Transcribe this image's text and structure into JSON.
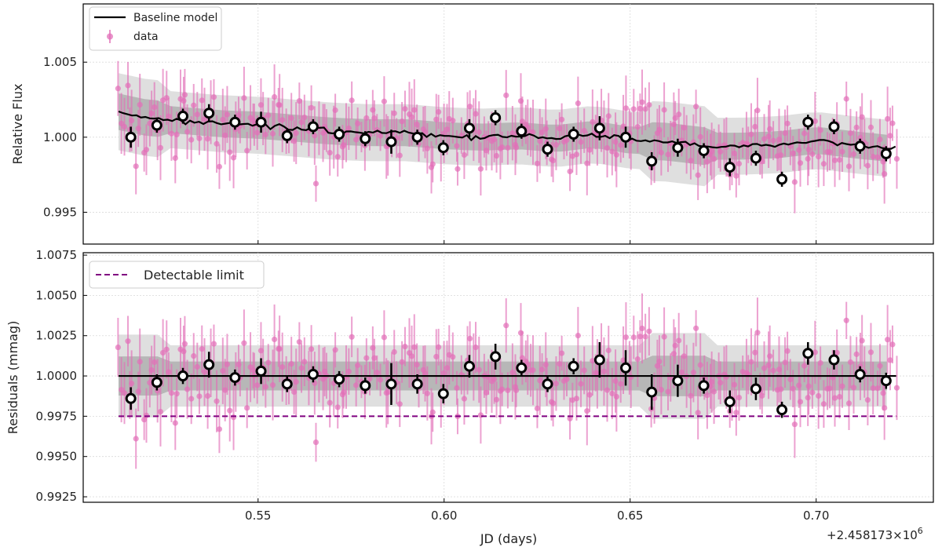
{
  "chart_data": [
    {
      "type": "scatter",
      "panel": "top",
      "ylabel": "Relative Flux",
      "xlabel": "",
      "xlim": [
        0.503,
        0.7315
      ],
      "ylim": [
        0.99288,
        1.00888
      ],
      "yticks": [
        0.995,
        1.0,
        1.005
      ],
      "ytick_labels": [
        "0.995",
        "1.000",
        "1.005"
      ],
      "xticks": [
        0.55,
        0.6,
        0.65,
        0.7
      ],
      "grid": true,
      "legend_position": "top-left",
      "legend": [
        "Baseline model",
        "data"
      ],
      "colors": {
        "data": "#e26fb8",
        "model": "#000000",
        "band_inner": "#b3b3b3",
        "band_outer": "#dcdcdc",
        "binned": "#000000"
      },
      "model_curve": {
        "name": "Baseline model",
        "x": [
          0.5125,
          0.52,
          0.53,
          0.54,
          0.55,
          0.56,
          0.57,
          0.58,
          0.59,
          0.6,
          0.61,
          0.62,
          0.63,
          0.64,
          0.65,
          0.66,
          0.67,
          0.68,
          0.69,
          0.7,
          0.71,
          0.7215
        ],
        "y": [
          1.0017,
          1.0013,
          1.0011,
          1.0009,
          1.0008,
          1.0006,
          1.0004,
          1.0003,
          1.0003,
          1.0001,
          1.0,
          1.0001,
          0.9999,
          1.0002,
          0.9998,
          0.9997,
          0.9994,
          0.9994,
          0.9995,
          0.9998,
          0.9995,
          0.9992
        ]
      },
      "binned": {
        "x": [
          0.5158,
          0.5228,
          0.5298,
          0.5368,
          0.5438,
          0.5508,
          0.5578,
          0.5648,
          0.5718,
          0.5788,
          0.5858,
          0.5928,
          0.5998,
          0.6068,
          0.6138,
          0.6208,
          0.6278,
          0.6348,
          0.6418,
          0.6488,
          0.6558,
          0.6628,
          0.6698,
          0.6768,
          0.6838,
          0.6908,
          0.6978,
          0.7048,
          0.7118,
          0.7188
        ],
        "y": [
          1.0,
          1.0008,
          1.0014,
          1.0016,
          1.001,
          1.001,
          1.0001,
          1.0007,
          1.0002,
          0.9999,
          0.9997,
          1.0,
          0.9993,
          1.0006,
          1.0013,
          1.0004,
          0.9992,
          1.0002,
          1.0006,
          1.0,
          0.9984,
          0.9993,
          0.9991,
          0.998,
          0.9986,
          0.9972,
          1.001,
          1.0007,
          0.9994,
          0.9989
        ],
        "err": [
          0.0007,
          0.0005,
          0.0005,
          0.0006,
          0.0005,
          0.0007,
          0.0005,
          0.0005,
          0.0005,
          0.0005,
          0.0008,
          0.0005,
          0.0005,
          0.0006,
          0.0005,
          0.0005,
          0.0005,
          0.0005,
          0.0008,
          0.0007,
          0.0006,
          0.0006,
          0.0005,
          0.0006,
          0.0005,
          0.0005,
          0.0005,
          0.0005,
          0.0005,
          0.0005
        ]
      }
    },
    {
      "type": "scatter",
      "panel": "bottom",
      "ylabel": "Residuals (mmag)",
      "xlabel": "JD (days)",
      "xlim": [
        0.503,
        0.7315
      ],
      "ylim": [
        0.99216,
        1.00765
      ],
      "yticks": [
        0.9925,
        0.995,
        0.9975,
        1.0,
        1.0025,
        1.005,
        1.0075
      ],
      "ytick_labels": [
        "0.9925",
        "0.9950",
        "0.9975",
        "1.0000",
        "1.0025",
        "1.0050",
        "1.0075"
      ],
      "xticks": [
        0.55,
        0.6,
        0.65,
        0.7
      ],
      "xtick_labels": [
        "0.55",
        "0.60",
        "0.65",
        "0.70"
      ],
      "x_offset_label": "+2.458173×10",
      "x_offset_exponent": "6",
      "grid": true,
      "legend_position": "top-left",
      "legend": [
        "Detectable limit"
      ],
      "colors": {
        "data": "#e26fb8",
        "zero_line": "#000000",
        "limit": "#800080",
        "band_inner": "#b3b3b3",
        "band_outer": "#dcdcdc"
      },
      "zero_line": 1.0,
      "detectable_limit": 0.9975,
      "limit_x": [
        0.5125,
        0.7215
      ],
      "binned": {
        "x": [
          0.5158,
          0.5228,
          0.5298,
          0.5368,
          0.5438,
          0.5508,
          0.5578,
          0.5648,
          0.5718,
          0.5788,
          0.5858,
          0.5928,
          0.5998,
          0.6068,
          0.6138,
          0.6208,
          0.6278,
          0.6348,
          0.6418,
          0.6488,
          0.6558,
          0.6628,
          0.6698,
          0.6768,
          0.6838,
          0.6908,
          0.6978,
          0.7048,
          0.7118,
          0.7188
        ],
        "y": [
          0.9986,
          0.9996,
          1.0,
          1.0007,
          0.9999,
          1.0003,
          0.9995,
          1.0001,
          0.9998,
          0.9994,
          0.9995,
          0.9995,
          0.9989,
          1.0006,
          1.0012,
          1.0005,
          0.9995,
          1.0006,
          1.001,
          1.0005,
          0.999,
          0.9997,
          0.9994,
          0.9984,
          0.9992,
          0.9979,
          1.0014,
          1.001,
          1.0001,
          0.9997
        ],
        "err": [
          0.0007,
          0.0005,
          0.0005,
          0.0008,
          0.0005,
          0.0008,
          0.0005,
          0.0005,
          0.0005,
          0.0005,
          0.0013,
          0.0006,
          0.0006,
          0.0007,
          0.0008,
          0.0005,
          0.0005,
          0.0005,
          0.0011,
          0.0011,
          0.0011,
          0.001,
          0.0005,
          0.0007,
          0.0007,
          0.0005,
          0.0007,
          0.0006,
          0.0005,
          0.0005
        ]
      }
    }
  ]
}
